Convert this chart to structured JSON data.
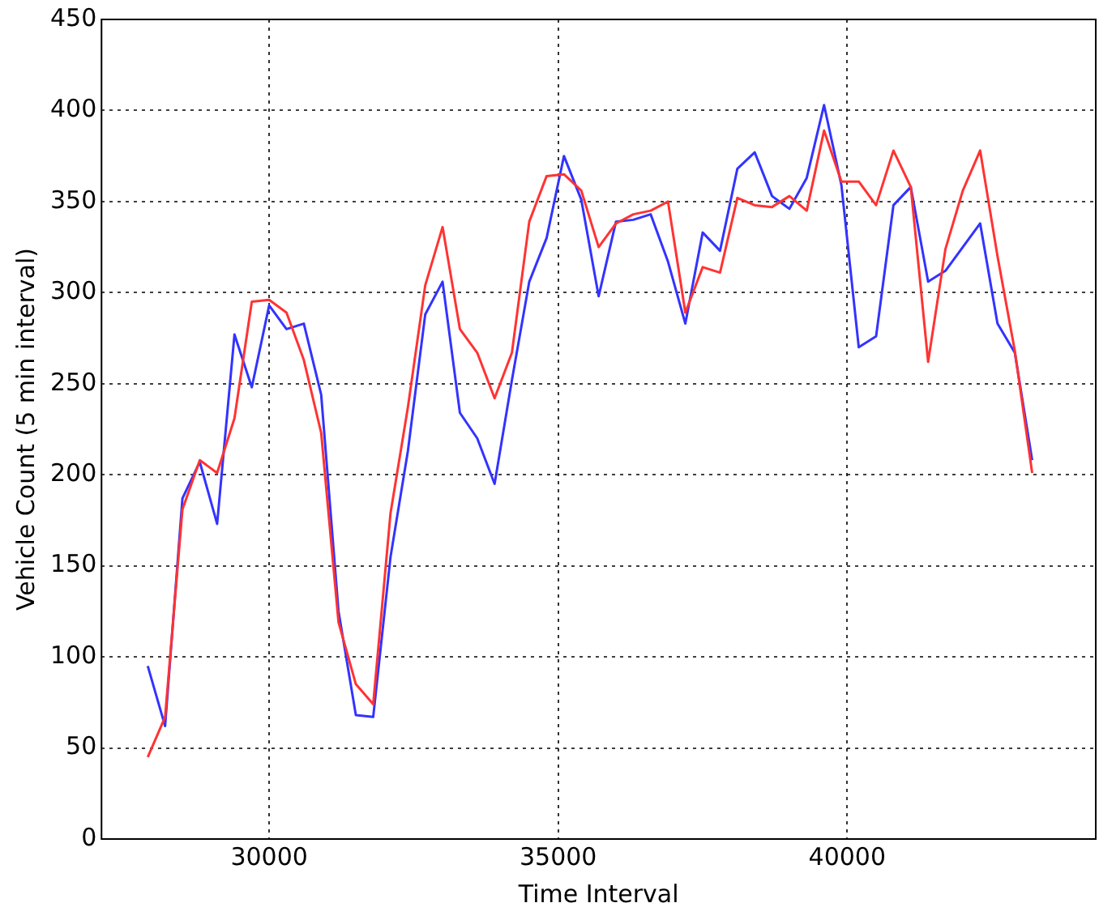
{
  "chart_data": {
    "type": "line",
    "xlabel": "Time Interval",
    "ylabel": "Vehicle Count (5 min interval)",
    "x": [
      27900,
      28200,
      28500,
      28800,
      29100,
      29400,
      29700,
      30000,
      30300,
      30600,
      30900,
      31200,
      31500,
      31800,
      32100,
      32400,
      32700,
      33000,
      33300,
      33600,
      33900,
      34200,
      34500,
      34800,
      35100,
      35400,
      35700,
      36000,
      36300,
      36600,
      36900,
      37200,
      37500,
      37800,
      38100,
      38400,
      38700,
      39000,
      39300,
      39600,
      39900,
      40200,
      40500,
      40800,
      41100,
      41400,
      41700,
      42000,
      42300,
      42600,
      42900,
      43200
    ],
    "series": [
      {
        "color": "#ff3333",
        "values": [
          45,
          67,
          181,
          208,
          201,
          231,
          295,
          296,
          289,
          263,
          223,
          119,
          85,
          74,
          179,
          237,
          304,
          336,
          280,
          267,
          242,
          267,
          339,
          364,
          365,
          356,
          325,
          338,
          343,
          345,
          350,
          289,
          314,
          311,
          352,
          348,
          347,
          353,
          345,
          389,
          361,
          361,
          348,
          378,
          358,
          262,
          324,
          356,
          378,
          320,
          268,
          201
        ]
      },
      {
        "color": "#3333ff",
        "values": [
          95,
          62,
          187,
          207,
          173,
          277,
          248,
          293,
          280,
          283,
          244,
          125,
          68,
          67,
          155,
          213,
          288,
          306,
          234,
          220,
          195,
          252,
          306,
          330,
          375,
          351,
          298,
          339,
          340,
          343,
          317,
          283,
          333,
          323,
          368,
          377,
          353,
          346,
          363,
          403,
          359,
          270,
          276,
          348,
          358,
          306,
          312,
          325,
          338,
          283,
          267,
          208
        ]
      }
    ],
    "xlim": [
      27100,
      44300
    ],
    "xticks": [
      30000,
      35000,
      40000
    ],
    "ylim": [
      0,
      450
    ],
    "yticks": [
      0,
      50,
      100,
      150,
      200,
      250,
      300,
      350,
      400,
      450
    ],
    "grid": true,
    "legend": false,
    "marker": "none",
    "line_style": "solid"
  }
}
